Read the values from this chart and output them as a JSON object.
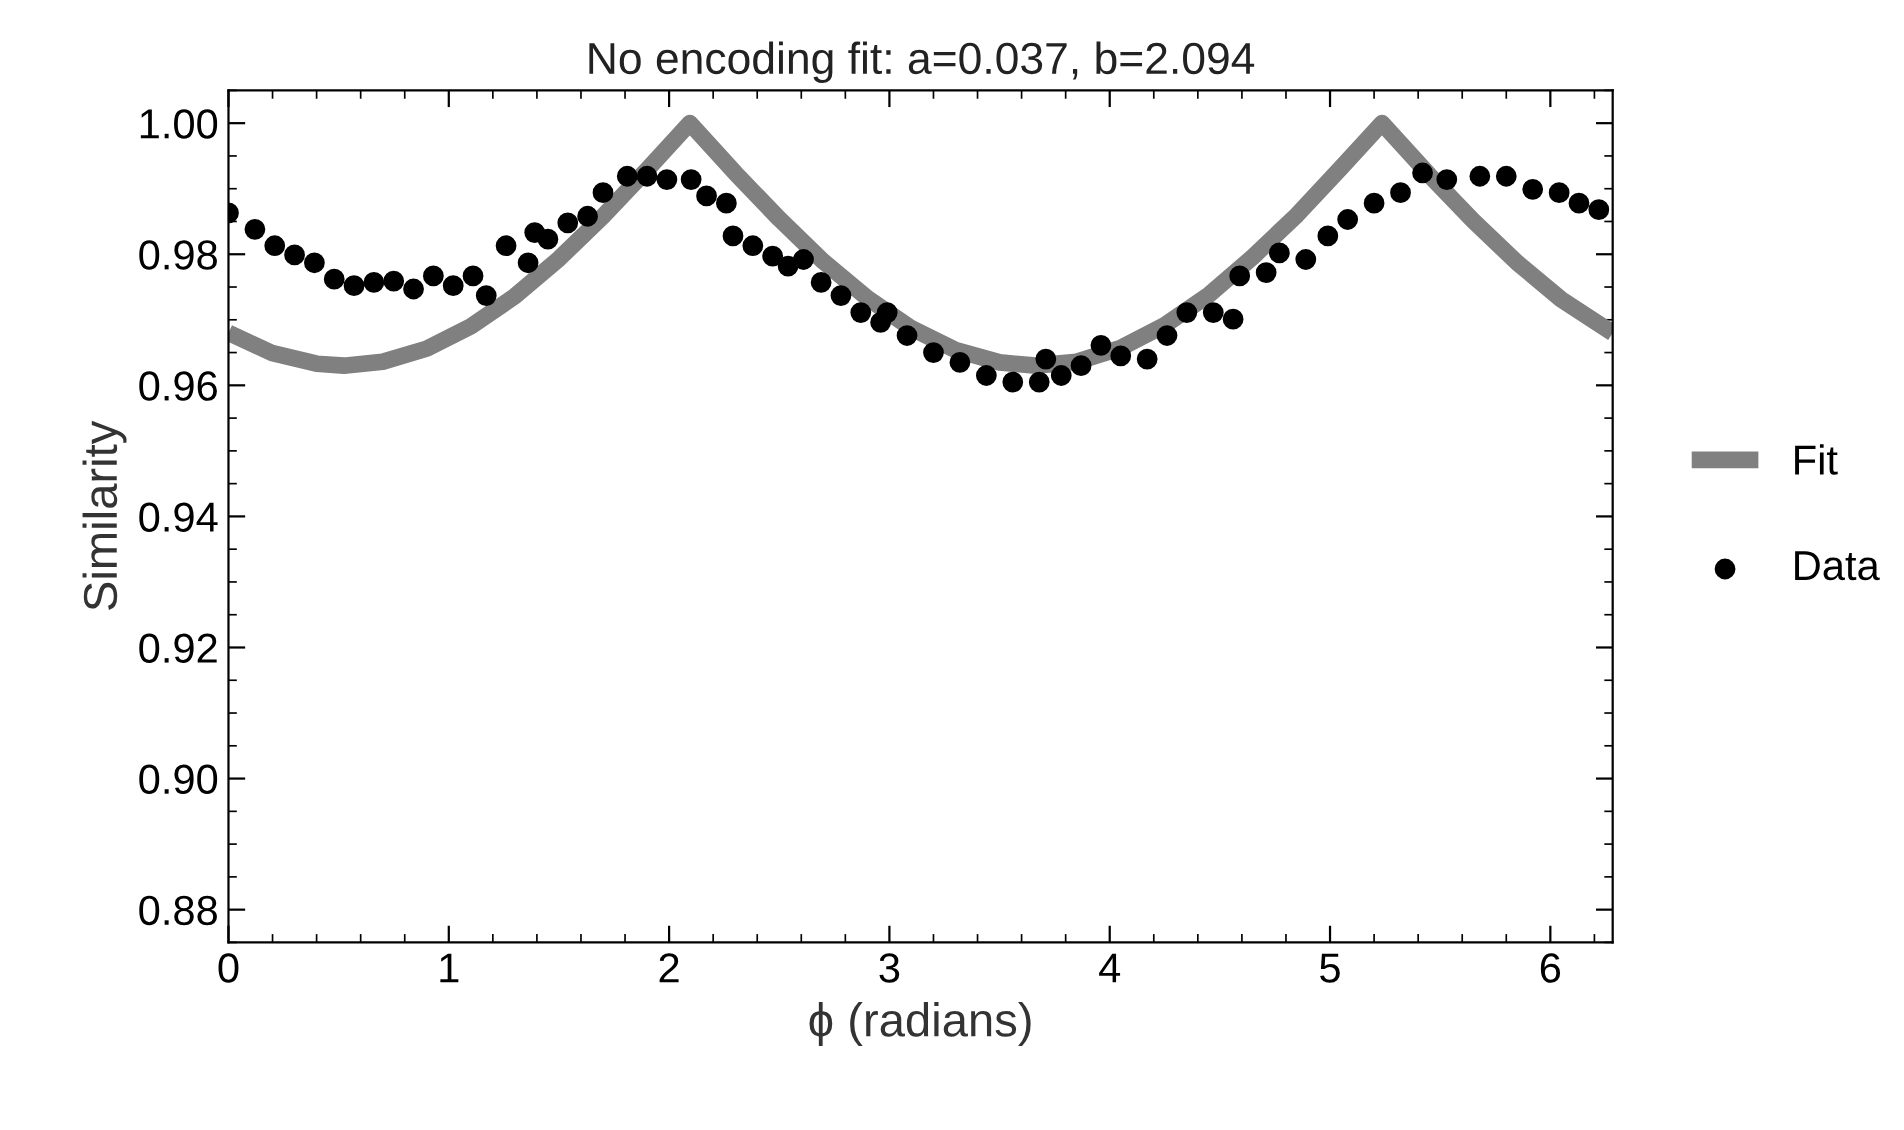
{
  "chart_data": {
    "type": "scatter",
    "title": "No encoding fit: a=0.037, b=2.094",
    "xlabel": "ϕ (radians)",
    "ylabel": "Similarity",
    "xlim": [
      0,
      6.283
    ],
    "ylim": [
      0.875,
      1.005
    ],
    "xticks": [
      0,
      1,
      2,
      3,
      4,
      5,
      6
    ],
    "yticks": [
      {
        "value": 0.88,
        "label": "0.88"
      },
      {
        "value": 0.9,
        "label": "0.90"
      },
      {
        "value": 0.92,
        "label": "0.92"
      },
      {
        "value": 0.94,
        "label": "0.94"
      },
      {
        "value": 0.96,
        "label": "0.96"
      },
      {
        "value": 0.98,
        "label": "0.98"
      },
      {
        "value": 1.0,
        "label": "1.00"
      }
    ],
    "grid": false,
    "legend": "right",
    "marker": "circle",
    "series": [
      {
        "name": "Fit",
        "type": "line",
        "color": "#808080",
        "line_style": "solid",
        "marker": "none",
        "x": [
          0,
          0.2,
          0.4,
          0.524,
          0.7,
          0.9,
          1.1,
          1.3,
          1.5,
          1.7,
          1.9,
          2.094,
          2.3,
          2.5,
          2.7,
          2.9,
          3.1,
          3.3,
          3.5,
          3.665,
          3.85,
          4.05,
          4.25,
          4.45,
          4.65,
          4.85,
          5.05,
          5.236,
          5.45,
          5.65,
          5.85,
          6.05,
          6.283
        ],
        "values": [
          0.968,
          0.9649,
          0.9633,
          0.963,
          0.9636,
          0.9656,
          0.969,
          0.9736,
          0.9793,
          0.9858,
          0.9929,
          1.0,
          0.9924,
          0.9854,
          0.9789,
          0.9733,
          0.9687,
          0.9654,
          0.9635,
          0.963,
          0.9636,
          0.9657,
          0.9692,
          0.9738,
          0.9796,
          0.986,
          0.9932,
          1.0,
          0.9921,
          0.9851,
          0.9787,
          0.9731,
          0.968
        ]
      },
      {
        "name": "Data",
        "color": "#000000",
        "x": [
          0.0,
          0.12,
          0.21,
          0.3,
          0.39,
          0.48,
          0.57,
          0.66,
          0.75,
          0.84,
          0.93,
          1.02,
          1.11,
          1.17,
          1.26,
          1.36,
          1.39,
          1.45,
          1.54,
          1.63,
          1.7,
          1.81,
          1.9,
          1.99,
          2.1,
          2.17,
          2.26,
          2.29,
          2.38,
          2.47,
          2.54,
          2.61,
          2.69,
          2.78,
          2.87,
          2.96,
          2.99,
          3.08,
          3.2,
          3.32,
          3.44,
          3.56,
          3.68,
          3.71,
          3.78,
          3.87,
          3.96,
          4.05,
          4.17,
          4.26,
          4.35,
          4.47,
          4.56,
          4.59,
          4.71,
          4.77,
          4.89,
          4.99,
          5.08,
          5.2,
          5.32,
          5.42,
          5.53,
          5.68,
          5.8,
          5.92,
          6.04,
          6.13,
          6.22
        ],
        "values": [
          0.9863,
          0.9838,
          0.9813,
          0.9799,
          0.9787,
          0.9762,
          0.9752,
          0.9757,
          0.9759,
          0.9747,
          0.9767,
          0.9752,
          0.9767,
          0.9737,
          0.9813,
          0.9787,
          0.9833,
          0.9823,
          0.9848,
          0.9858,
          0.9894,
          0.9919,
          0.9919,
          0.9914,
          0.9914,
          0.9889,
          0.9878,
          0.9828,
          0.9813,
          0.9797,
          0.9782,
          0.9792,
          0.9757,
          0.9737,
          0.9711,
          0.9696,
          0.9711,
          0.9676,
          0.965,
          0.9635,
          0.9615,
          0.9605,
          0.9605,
          0.964,
          0.9615,
          0.963,
          0.9661,
          0.9645,
          0.964,
          0.9676,
          0.9711,
          0.9711,
          0.9701,
          0.9767,
          0.9772,
          0.9802,
          0.9792,
          0.9828,
          0.9853,
          0.9878,
          0.9894,
          0.9924,
          0.9914,
          0.9919,
          0.9919,
          0.9899,
          0.9894,
          0.9878,
          0.9868
        ]
      }
    ]
  }
}
